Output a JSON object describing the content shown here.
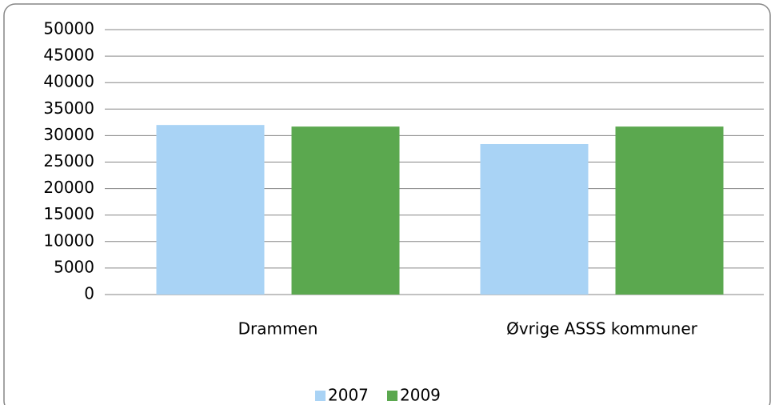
{
  "chart_data": {
    "type": "bar",
    "categories": [
      "Drammen",
      "Øvrige ASSS kommuner"
    ],
    "series": [
      {
        "name": "2007",
        "color": "#a9d3f5",
        "values": [
          32000,
          28400
        ]
      },
      {
        "name": "2009",
        "color": "#5ba84f",
        "values": [
          31700,
          31700
        ]
      }
    ],
    "ylim": [
      0,
      50000
    ],
    "yticks": [
      0,
      5000,
      10000,
      15000,
      20000,
      25000,
      30000,
      35000,
      40000,
      45000,
      50000
    ],
    "grid": true,
    "legend": "bottom"
  }
}
